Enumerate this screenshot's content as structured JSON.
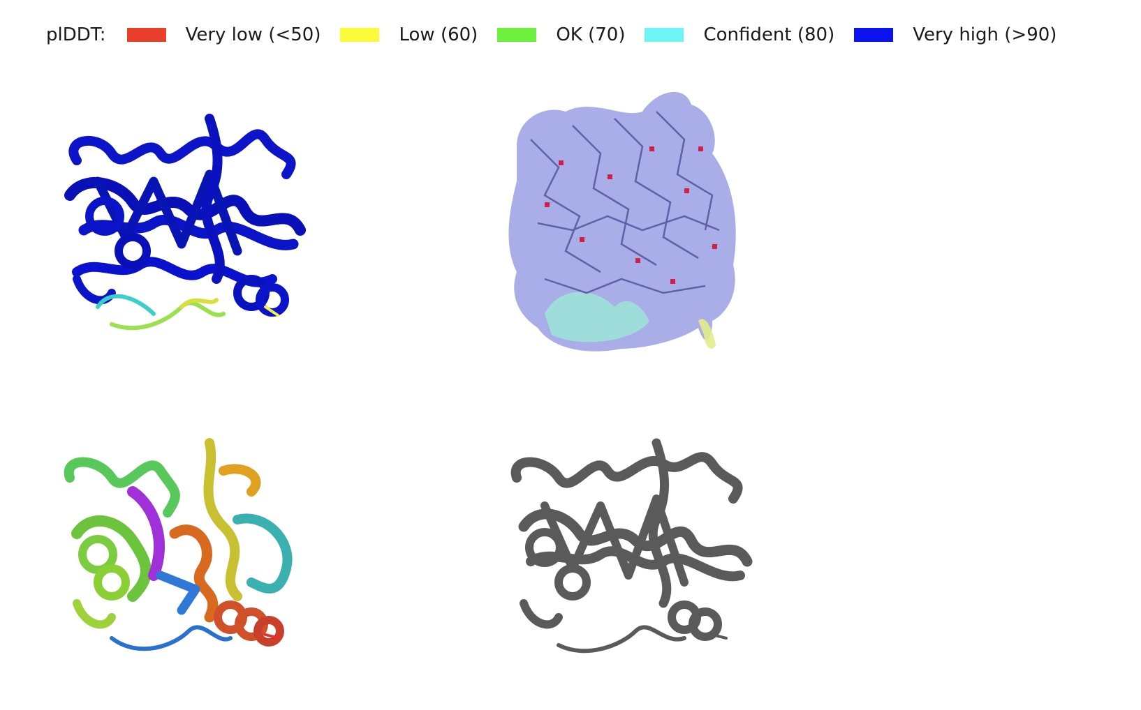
{
  "legend": {
    "title": "plDDT:",
    "items": [
      {
        "label": "Very low (<50)",
        "color": "#e8402a"
      },
      {
        "label": "Low (60)",
        "color": "#fbfb3a"
      },
      {
        "label": "OK (70)",
        "color": "#6cf03c"
      },
      {
        "label": "Confident (80)",
        "color": "#6ef6f6"
      },
      {
        "label": "Very high (>90)",
        "color": "#0a12f0"
      }
    ]
  },
  "panels": {
    "plddt_cartoon": {
      "icon": "protein-cartoon-plddt",
      "main_color": "#0b14c8"
    },
    "plddt_surface": {
      "icon": "protein-surface-sticks",
      "main_color": "#8c91e0"
    },
    "rainbow_cartoon": {
      "icon": "protein-cartoon-rainbow"
    },
    "gray_cartoon": {
      "icon": "protein-cartoon-gray",
      "main_color": "#5a5a5a"
    }
  }
}
